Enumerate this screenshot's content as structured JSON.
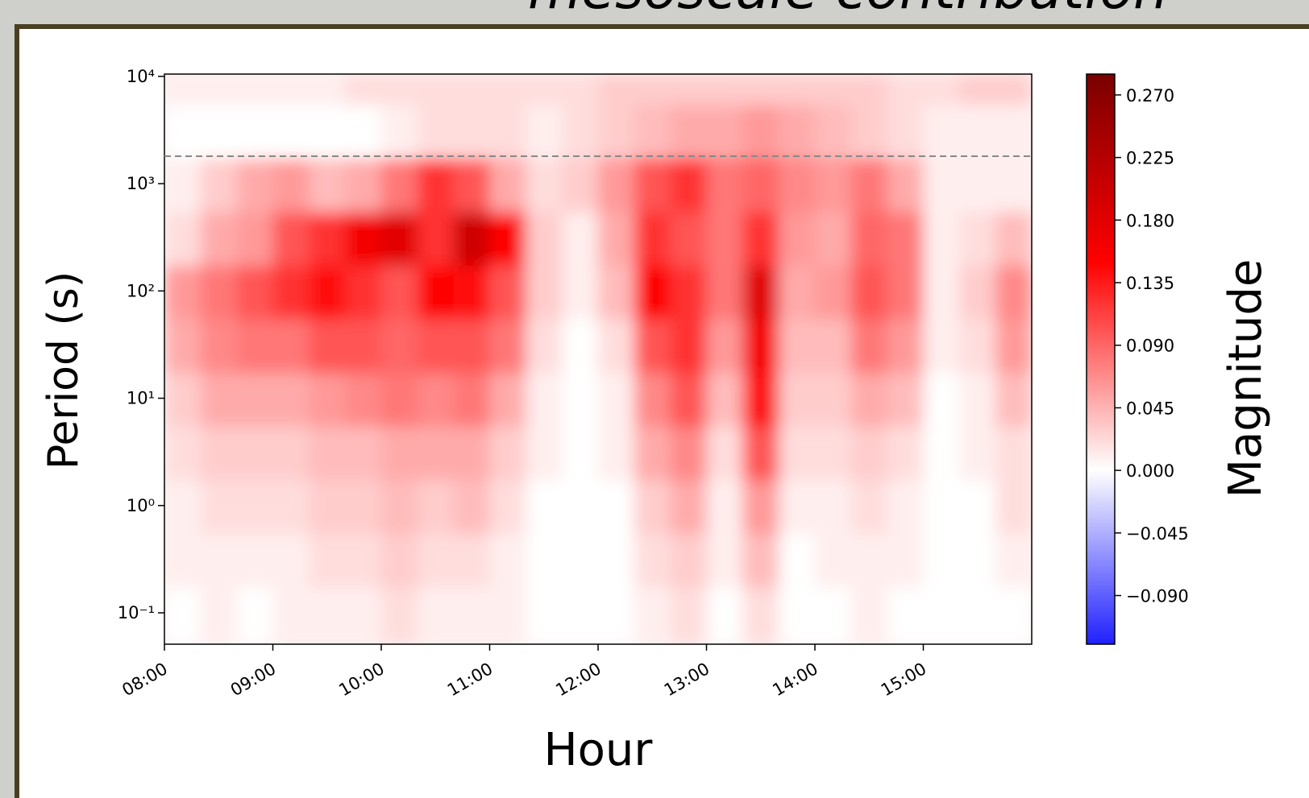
{
  "chart_data": {
    "type": "heatmap",
    "title": "mesoscale contribution",
    "x_label": "Hour",
    "y_label": "Period (s)",
    "colorbar_label": "Magnitude",
    "x": [
      8.167,
      8.5,
      8.833,
      9.167,
      9.5,
      9.833,
      10.167,
      10.5,
      10.833,
      11.167,
      11.5,
      11.833,
      12.167,
      12.5,
      12.833,
      13.167,
      13.5,
      13.833,
      14.167,
      14.5,
      14.833,
      15.167,
      15.5,
      15.833
    ],
    "y": [
      0.1,
      0.3,
      1,
      3,
      10,
      30,
      100,
      300,
      1000,
      3000,
      10000
    ],
    "z": [
      [
        0,
        0.01,
        0,
        0.01,
        0.01,
        0.01,
        0.02,
        0.01,
        0.01,
        0.01,
        0,
        0,
        0,
        0.01,
        0.02,
        0,
        0.02,
        0,
        0,
        0.01,
        0,
        0,
        0,
        0
      ],
      [
        0.01,
        0.01,
        0.01,
        0.01,
        0.02,
        0.02,
        0.03,
        0.02,
        0.02,
        0.01,
        0,
        0,
        0,
        0.02,
        0.03,
        0.01,
        0.04,
        0,
        0.01,
        0.01,
        0.01,
        0,
        0,
        0.01
      ],
      [
        0.01,
        0.02,
        0.02,
        0.02,
        0.03,
        0.03,
        0.04,
        0.03,
        0.04,
        0.02,
        0,
        0,
        0,
        0.03,
        0.05,
        0.01,
        0.06,
        0.01,
        0.01,
        0.02,
        0.01,
        0,
        0,
        0.02
      ],
      [
        0.02,
        0.03,
        0.03,
        0.03,
        0.04,
        0.04,
        0.05,
        0.05,
        0.05,
        0.03,
        0.01,
        0,
        0.01,
        0.05,
        0.07,
        0.02,
        0.1,
        0.02,
        0.02,
        0.03,
        0.02,
        0,
        0.01,
        0.02
      ],
      [
        0.03,
        0.05,
        0.05,
        0.05,
        0.06,
        0.07,
        0.08,
        0.07,
        0.08,
        0.05,
        0.01,
        0,
        0.01,
        0.07,
        0.1,
        0.04,
        0.14,
        0.03,
        0.03,
        0.05,
        0.04,
        0,
        0.01,
        0.04
      ],
      [
        0.05,
        0.07,
        0.08,
        0.08,
        0.1,
        0.1,
        0.09,
        0.1,
        0.1,
        0.08,
        0.02,
        0,
        0.02,
        0.1,
        0.12,
        0.06,
        0.16,
        0.04,
        0.04,
        0.08,
        0.06,
        0.01,
        0.02,
        0.06
      ],
      [
        0.06,
        0.08,
        0.1,
        0.12,
        0.14,
        0.12,
        0.1,
        0.15,
        0.14,
        0.1,
        0.03,
        0.01,
        0.04,
        0.15,
        0.12,
        0.08,
        0.18,
        0.05,
        0.06,
        0.1,
        0.08,
        0.01,
        0.03,
        0.07
      ],
      [
        0.02,
        0.05,
        0.06,
        0.1,
        0.12,
        0.16,
        0.18,
        0.12,
        0.2,
        0.15,
        0.03,
        0.01,
        0.05,
        0.12,
        0.1,
        0.08,
        0.12,
        0.06,
        0.05,
        0.09,
        0.08,
        0.01,
        0.02,
        0.04
      ],
      [
        0.01,
        0.03,
        0.05,
        0.06,
        0.04,
        0.05,
        0.08,
        0.12,
        0.1,
        0.05,
        0.02,
        0.03,
        0.06,
        0.1,
        0.12,
        0.08,
        0.09,
        0.07,
        0.06,
        0.08,
        0.05,
        0.01,
        0.01,
        0.01
      ],
      [
        0,
        0,
        0,
        0,
        0,
        0,
        0.01,
        0.02,
        0.02,
        0.02,
        0.01,
        0.02,
        0.03,
        0.04,
        0.05,
        0.05,
        0.06,
        0.05,
        0.04,
        0.03,
        0.02,
        0.01,
        0.01,
        0.01
      ],
      [
        0.01,
        0.01,
        0.01,
        0.01,
        0.01,
        0.02,
        0.02,
        0.02,
        0.02,
        0.02,
        0.02,
        0.02,
        0.03,
        0.03,
        0.03,
        0.03,
        0.03,
        0.03,
        0.03,
        0.03,
        0.02,
        0.02,
        0.03,
        0.03
      ]
    ],
    "xlim": [
      8,
      16
    ],
    "xticks": [
      {
        "value": 8,
        "label": "08:00"
      },
      {
        "value": 9,
        "label": "09:00"
      },
      {
        "value": 10,
        "label": "10:00"
      },
      {
        "value": 11,
        "label": "11:00"
      },
      {
        "value": 12,
        "label": "12:00"
      },
      {
        "value": 13,
        "label": "13:00"
      },
      {
        "value": 14,
        "label": "14:00"
      },
      {
        "value": 15,
        "label": "15:00"
      }
    ],
    "ylim": [
      0.051,
      10500
    ],
    "y_scale": "log",
    "yticks": [
      {
        "value": 0.1,
        "label": "10⁻¹"
      },
      {
        "value": 1,
        "label": "10⁰"
      },
      {
        "value": 10,
        "label": "10¹"
      },
      {
        "value": 100,
        "label": "10²"
      },
      {
        "value": 1000,
        "label": "10³"
      },
      {
        "value": 10000,
        "label": "10⁴"
      }
    ],
    "hline": 1800,
    "hline_color": "#888888",
    "clim": [
      -0.125,
      0.285
    ],
    "cticks": [
      {
        "value": 0.27,
        "label": "0.270"
      },
      {
        "value": 0.225,
        "label": "0.225"
      },
      {
        "value": 0.18,
        "label": "0.180"
      },
      {
        "value": 0.135,
        "label": "0.135"
      },
      {
        "value": 0.09,
        "label": "0.090"
      },
      {
        "value": 0.045,
        "label": "0.045"
      },
      {
        "value": 0,
        "label": "0.000"
      },
      {
        "value": -0.045,
        "label": "−0.045"
      },
      {
        "value": -0.09,
        "label": "−0.090"
      }
    ],
    "colorscale": [
      [
        -0.125,
        "#2020ff"
      ],
      [
        0,
        "#ffffff"
      ],
      [
        0.15,
        "#ff0000"
      ],
      [
        0.285,
        "#7a0000"
      ]
    ]
  }
}
